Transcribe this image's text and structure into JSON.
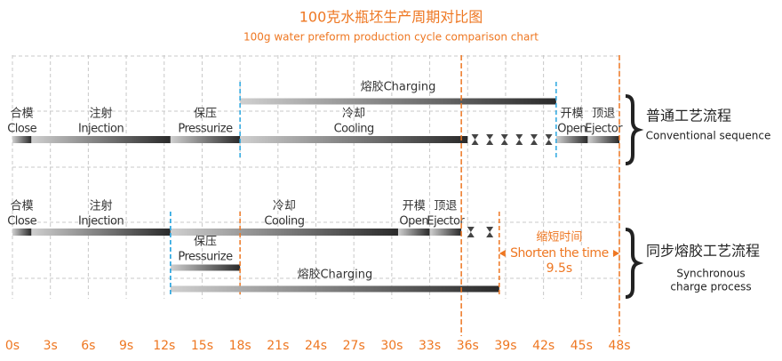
{
  "chart_data": {
    "type": "gantt",
    "title": "100克水瓶坯生产周期对比图",
    "subtitle": "100g water preform production cycle comparison chart",
    "xlim": [
      0,
      48
    ],
    "xticks": [
      {
        "value": 0,
        "label": "0s"
      },
      {
        "value": 3,
        "label": "3s"
      },
      {
        "value": 6,
        "label": "6s"
      },
      {
        "value": 9,
        "label": "9s"
      },
      {
        "value": 12,
        "label": "12s"
      },
      {
        "value": 15,
        "label": "15s"
      },
      {
        "value": 18,
        "label": "18s"
      },
      {
        "value": 21,
        "label": "21s"
      },
      {
        "value": 24,
        "label": "24s"
      },
      {
        "value": 27,
        "label": "27s"
      },
      {
        "value": 30,
        "label": "30s"
      },
      {
        "value": 33,
        "label": "33s"
      },
      {
        "value": 36,
        "label": "36s"
      },
      {
        "value": 39,
        "label": "39s"
      },
      {
        "value": 42,
        "label": "42s"
      },
      {
        "value": 45,
        "label": "45s"
      },
      {
        "value": 48,
        "label": "48s"
      }
    ],
    "grid": true,
    "rows": [
      {
        "name": "普通工艺流程",
        "description": "Conventional sequence",
        "sub_position": "above",
        "tasks": [
          {
            "cn": "合模",
            "en": "Close",
            "start": 0,
            "end": 1.5
          },
          {
            "cn": "注射",
            "en": "Injection",
            "start": 1.5,
            "end": 12.5
          },
          {
            "cn": "保压",
            "en": "Pressurize",
            "start": 12.5,
            "end": 18
          },
          {
            "cn": "冷却",
            "en": "Cooling",
            "start": 18,
            "end": 36
          },
          {
            "cn": "开模",
            "en": "Open",
            "start": 43,
            "end": 45.5
          },
          {
            "cn": "顶退",
            "en": "Ejector",
            "start": 45.5,
            "end": 48
          }
        ],
        "waits": [
          {
            "start": 36,
            "end": 43
          }
        ],
        "sub_tasks": [
          {
            "name": "熔胶Charging",
            "start": 18,
            "end": 43
          }
        ]
      },
      {
        "name": "同步熔胶工艺流程",
        "description": [
          "Synchronous",
          "charge process"
        ],
        "sub_position": "below",
        "tasks": [
          {
            "cn": "合模",
            "en": "Close",
            "start": 0,
            "end": 1.5
          },
          {
            "cn": "注射",
            "en": "Injection",
            "start": 1.5,
            "end": 12.5
          },
          {
            "cn": "冷却",
            "en": "Cooling",
            "start": 12.5,
            "end": 30.5
          },
          {
            "cn": "开模",
            "en": "Open",
            "start": 30.5,
            "end": 33
          },
          {
            "cn": "顶退",
            "en": "Ejector",
            "start": 33,
            "end": 35.5
          }
        ],
        "waits": [
          {
            "start": 35.5,
            "end": 38.5
          }
        ],
        "sub_tasks": [
          {
            "cn": "保压",
            "en": "Pressurize",
            "start": 12.5,
            "end": 18
          },
          {
            "name": "熔胶Charging",
            "start": 12.5,
            "end": 38.5
          }
        ]
      }
    ],
    "annotation": {
      "cn": "缩短时间",
      "en": "Shorten the time",
      "start": 38.5,
      "end": 48,
      "value": 9.5,
      "value_label": "9.5s"
    },
    "colors": {
      "accent": "#ee7722",
      "marker": "#2aa6e0"
    }
  }
}
